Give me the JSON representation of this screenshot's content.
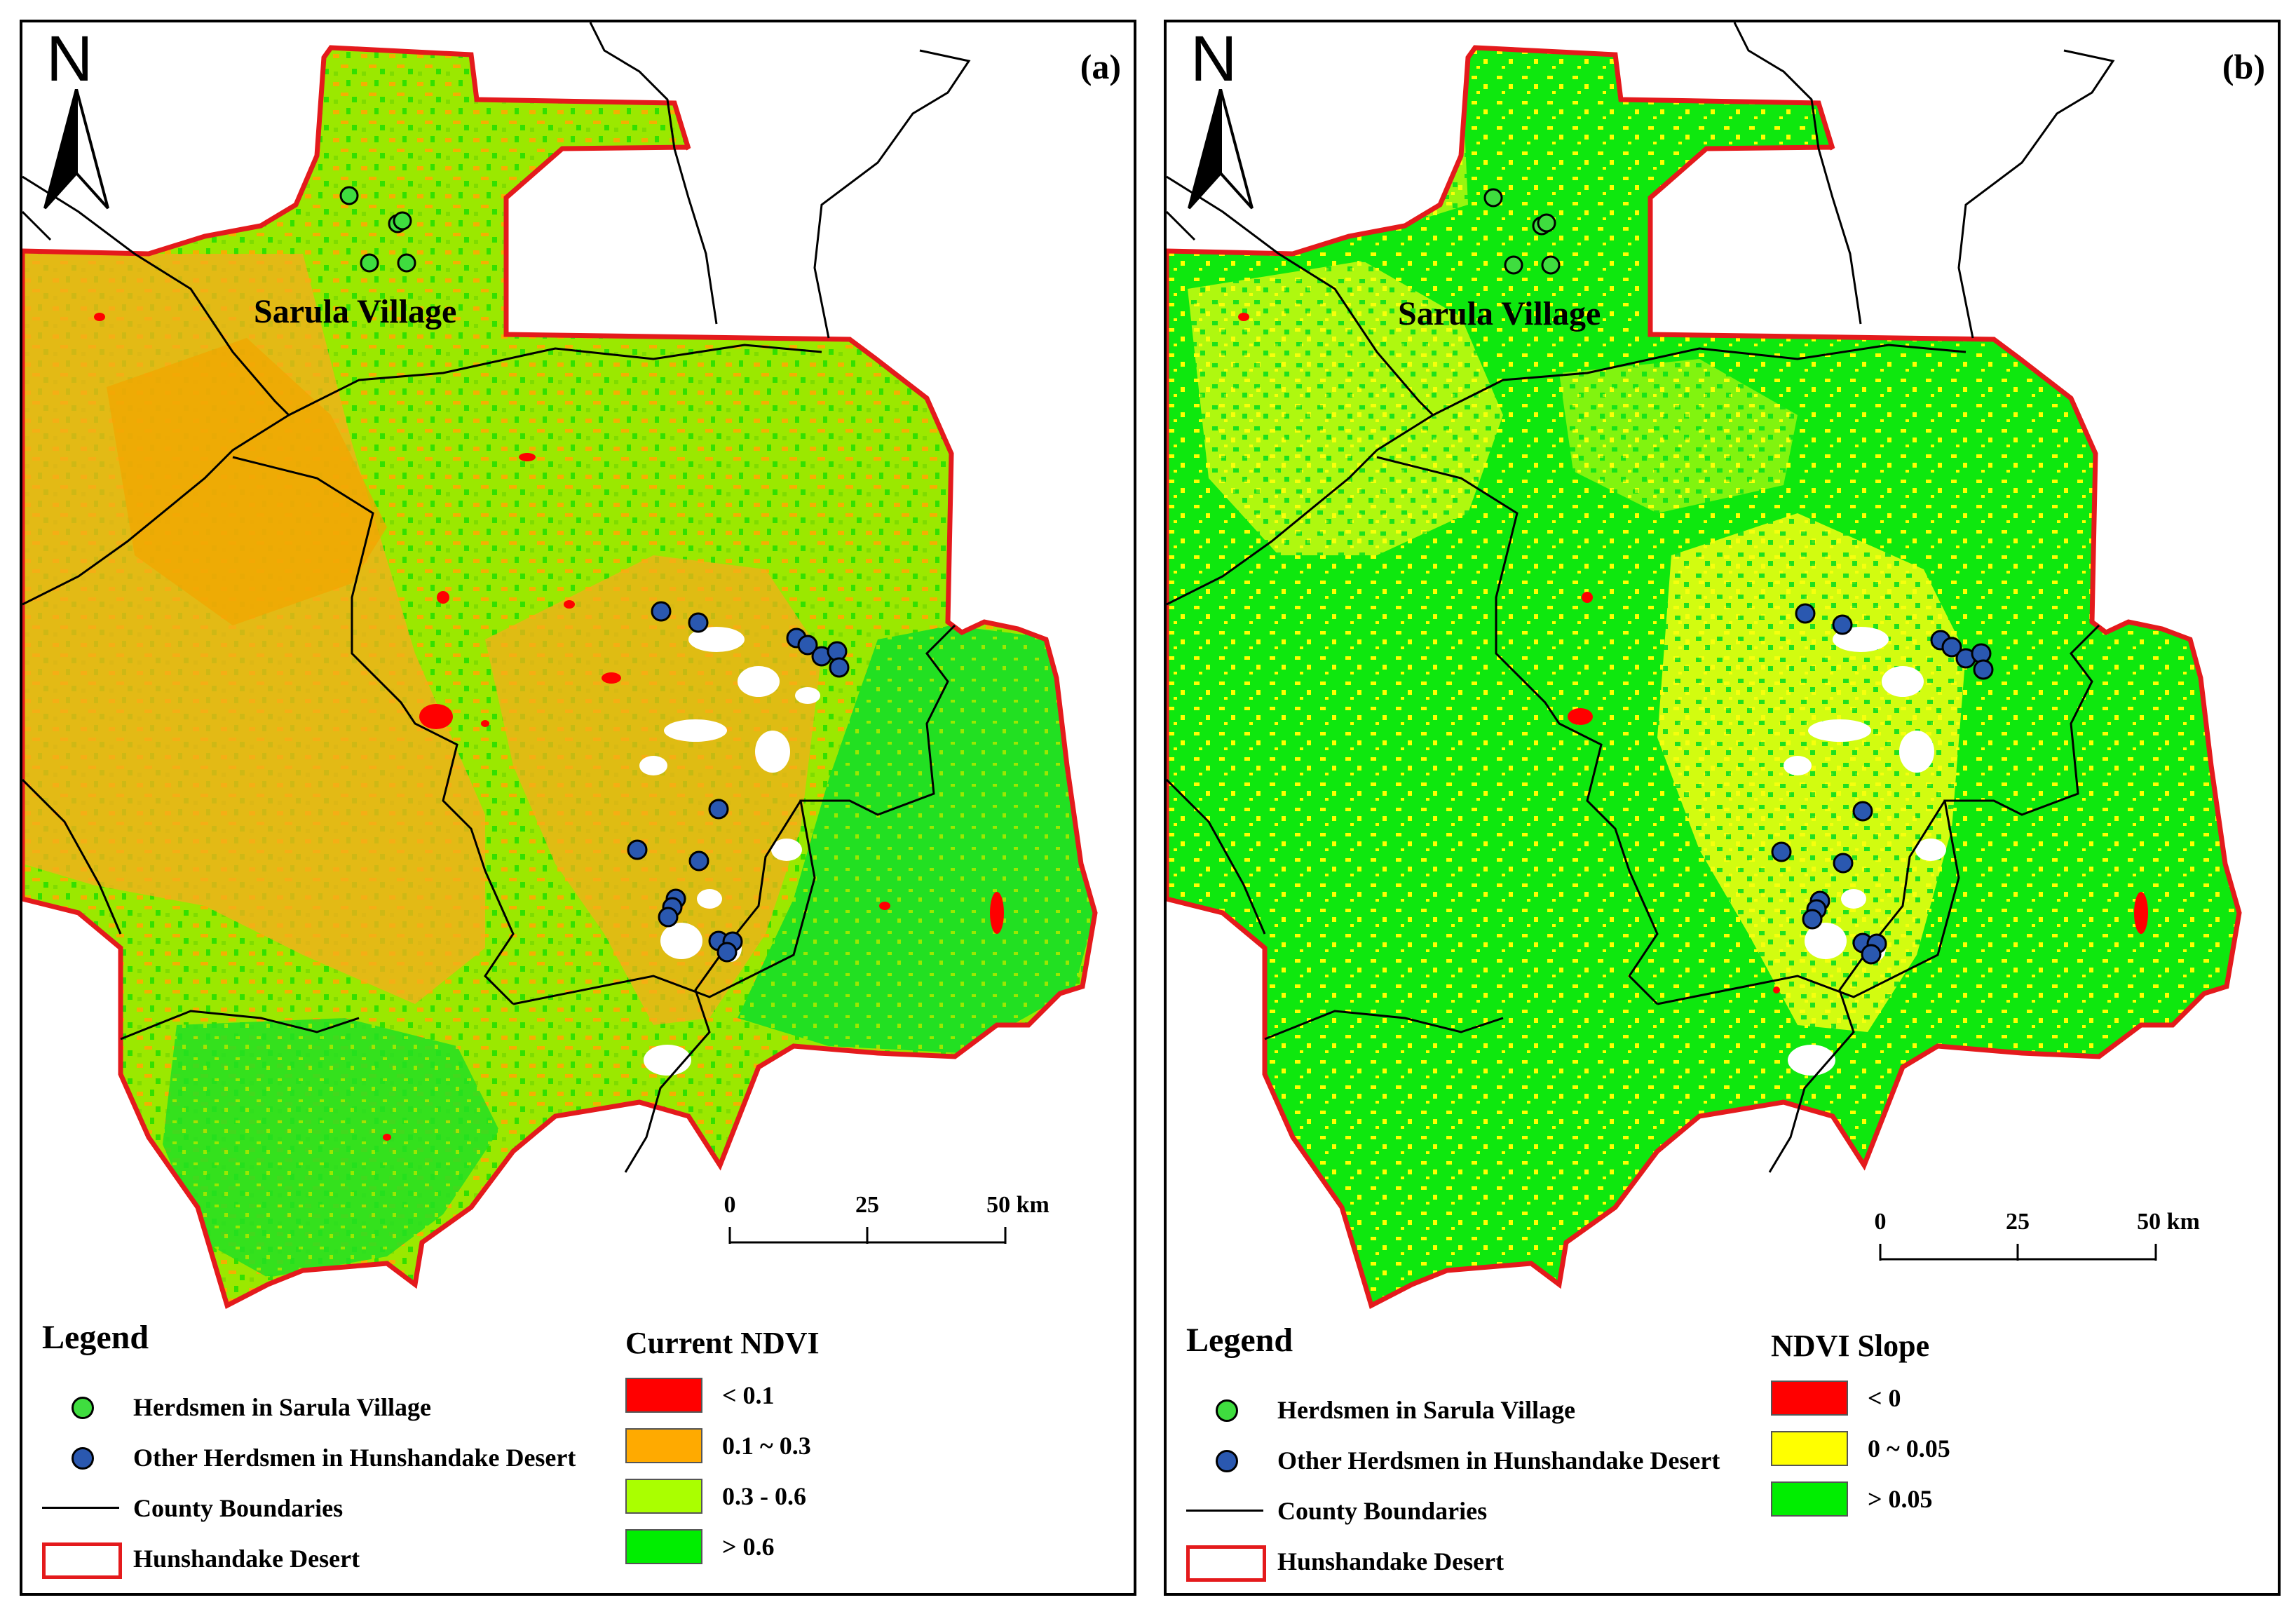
{
  "panel_a": {
    "label": "(a)",
    "north": "N",
    "village_label": "Sarula Village",
    "scale": {
      "ticks": [
        "0",
        "25",
        "50 km"
      ]
    },
    "legend": {
      "title": "Legend",
      "items": [
        {
          "label": "Herdsmen in Sarula Village",
          "symbol": "green-dot"
        },
        {
          "label": "Other Herdsmen in Hunshandake Desert",
          "symbol": "blue-dot"
        },
        {
          "label": "County Boundaries",
          "symbol": "line"
        },
        {
          "label": "Hunshandake Desert",
          "symbol": "red-outline-box"
        }
      ]
    },
    "ramp": {
      "title": "Current NDVI",
      "classes": [
        {
          "label": "< 0.1",
          "color": "#ff0000"
        },
        {
          "label": "0.1 ~ 0.3",
          "color": "#ffaa00"
        },
        {
          "label": "0.3 - 0.6",
          "color": "#aaff00"
        },
        {
          "label": "> 0.6",
          "color": "#00ee00"
        }
      ]
    }
  },
  "panel_b": {
    "label": "(b)",
    "north": "N",
    "village_label": "Sarula Village",
    "scale": {
      "ticks": [
        "0",
        "25",
        "50 km"
      ]
    },
    "legend": {
      "title": "Legend",
      "items": [
        {
          "label": "Herdsmen in Sarula Village",
          "symbol": "green-dot"
        },
        {
          "label": "Other Herdsmen in Hunshandake Desert",
          "symbol": "blue-dot"
        },
        {
          "label": "County Boundaries",
          "symbol": "line"
        },
        {
          "label": "Hunshandake Desert",
          "symbol": "red-outline-box"
        }
      ]
    },
    "ramp": {
      "title": "NDVI Slope",
      "classes": [
        {
          "label": "< 0",
          "color": "#ff0000"
        },
        {
          "label": "0 ~ 0.05",
          "color": "#ffff00"
        },
        {
          "label": "> 0.05",
          "color": "#00ee00"
        }
      ]
    }
  },
  "colors": {
    "desert_outline": "#e41a1c",
    "sarula_dot": "#3fdd3f",
    "other_dot": "#2a58b0"
  }
}
